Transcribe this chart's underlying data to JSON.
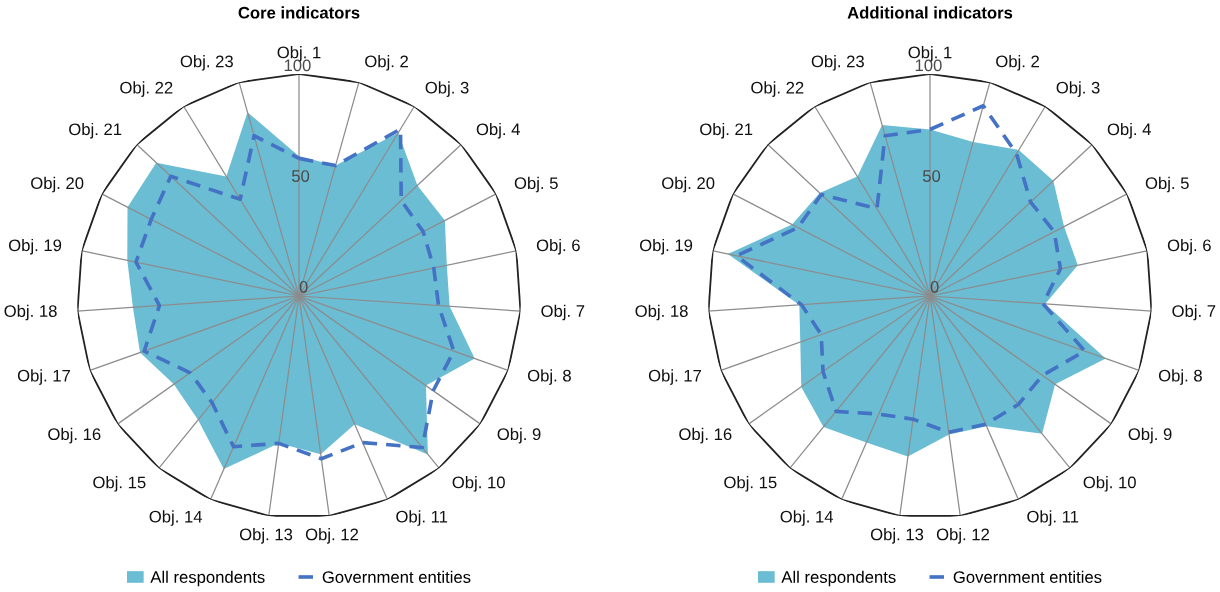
{
  "chart_data": [
    {
      "type": "radar",
      "title": "Core indicators",
      "categories": [
        "Obj. 1",
        "Obj. 2",
        "Obj. 3",
        "Obj. 4",
        "Obj. 5",
        "Obj. 6",
        "Obj. 7",
        "Obj. 8",
        "Obj. 9",
        "Obj. 10",
        "Obj. 11",
        "Obj. 12",
        "Obj. 13",
        "Obj. 14",
        "Obj. 15",
        "Obj. 16",
        "Obj. 17",
        "Obj. 18",
        "Obj. 19",
        "Obj. 20",
        "Obj. 21",
        "Obj. 22",
        "Obj. 23"
      ],
      "series": [
        {
          "name": "All respondents",
          "color": "#6bbdd4",
          "values": [
            63,
            61,
            86,
            73,
            74,
            68,
            68,
            84,
            70,
            92,
            63,
            72,
            67,
            85,
            72,
            69,
            76,
            75,
            79,
            87,
            88,
            63,
            86
          ]
        },
        {
          "name": "Government entities",
          "line_style": "dashed",
          "color": "#4472c4",
          "values": [
            62,
            61,
            88,
            63,
            63,
            62,
            63,
            74,
            74,
            88,
            72,
            74,
            67,
            74,
            62,
            60,
            74,
            63,
            75,
            75,
            79,
            51,
            75
          ]
        }
      ],
      "ylim": [
        0,
        100
      ],
      "yticks": [
        0,
        50,
        100
      ],
      "grid": true,
      "legend": "bottom"
    },
    {
      "type": "radar",
      "title": "Additional indicators",
      "categories": [
        "Obj. 1",
        "Obj. 2",
        "Obj. 3",
        "Obj. 4",
        "Obj. 5",
        "Obj. 6",
        "Obj. 7",
        "Obj. 8",
        "Obj. 9",
        "Obj. 10",
        "Obj. 11",
        "Obj. 12",
        "Obj. 13",
        "Obj. 14",
        "Obj. 15",
        "Obj. 16",
        "Obj. 17",
        "Obj. 18",
        "Obj. 19",
        "Obj. 20",
        "Obj. 21",
        "Obj. 22",
        "Obj. 23"
      ],
      "series": [
        {
          "name": "All respondents",
          "color": "#6bbdd4",
          "values": [
            75,
            72,
            77,
            76,
            68,
            68,
            52,
            84,
            69,
            80,
            64,
            63,
            73,
            72,
            76,
            71,
            62,
            59,
            93,
            70,
            68,
            63,
            80
          ]
        },
        {
          "name": "Government entities",
          "line_style": "dashed",
          "color": "#4472c4",
          "values": [
            75,
            89,
            75,
            62,
            63,
            60,
            51,
            74,
            62,
            63,
            63,
            62,
            56,
            58,
            67,
            59,
            52,
            58,
            89,
            67,
            67,
            46,
            75
          ]
        }
      ],
      "ylim": [
        0,
        100
      ],
      "yticks": [
        0,
        50,
        100
      ],
      "grid": true,
      "legend": "bottom"
    }
  ]
}
